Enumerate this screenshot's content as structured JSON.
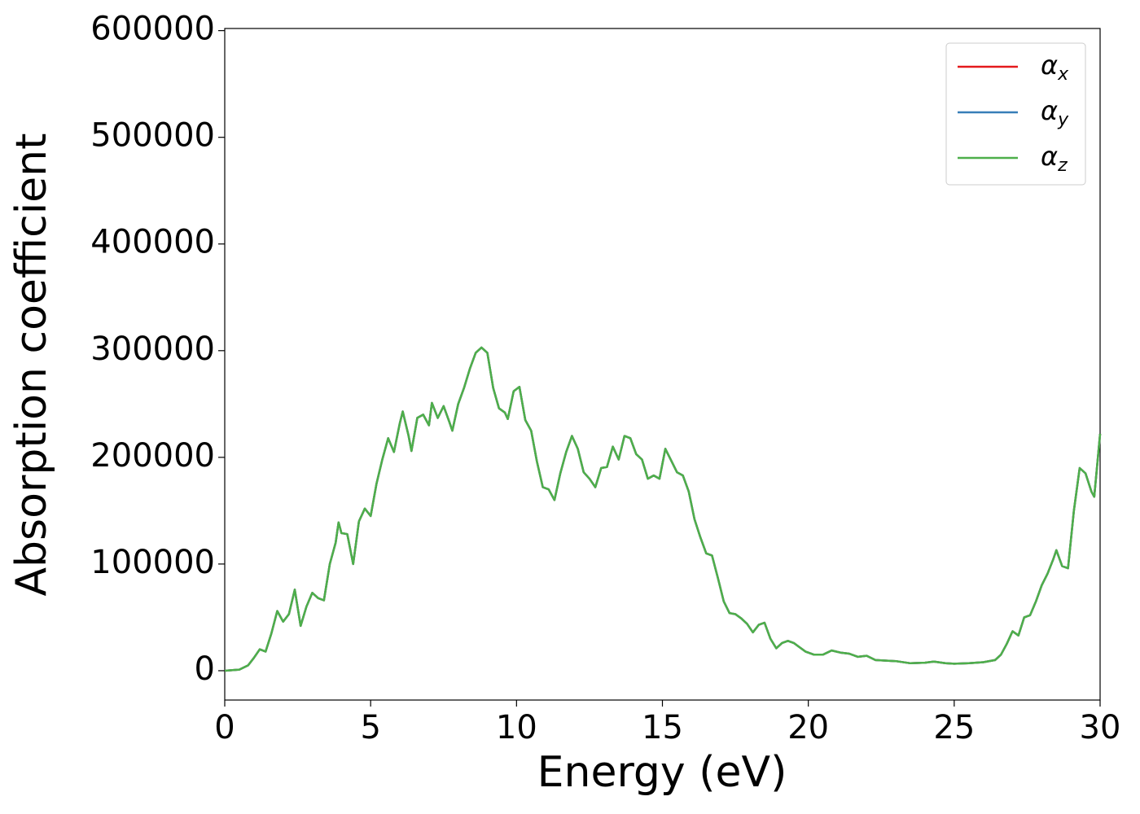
{
  "chart_data": {
    "type": "line",
    "xlabel": "Energy (eV)",
    "ylabel": "Absorption coefficient",
    "x": [
      0,
      0.5,
      0.8,
      1.0,
      1.2,
      1.4,
      1.6,
      1.8,
      2.0,
      2.2,
      2.4,
      2.6,
      2.8,
      3.0,
      3.2,
      3.4,
      3.6,
      3.8,
      3.9,
      4.0,
      4.2,
      4.4,
      4.6,
      4.8,
      5.0,
      5.2,
      5.4,
      5.6,
      5.8,
      6.0,
      6.1,
      6.3,
      6.4,
      6.6,
      6.8,
      7.0,
      7.1,
      7.3,
      7.5,
      7.7,
      7.8,
      8.0,
      8.2,
      8.4,
      8.6,
      8.8,
      9.0,
      9.2,
      9.4,
      9.6,
      9.7,
      9.9,
      10.1,
      10.3,
      10.5,
      10.7,
      10.9,
      11.1,
      11.3,
      11.5,
      11.7,
      11.9,
      12.1,
      12.3,
      12.5,
      12.7,
      12.9,
      13.1,
      13.3,
      13.5,
      13.7,
      13.9,
      14.1,
      14.3,
      14.5,
      14.7,
      14.9,
      15.1,
      15.3,
      15.5,
      15.7,
      15.9,
      16.1,
      16.3,
      16.5,
      16.7,
      16.9,
      17.1,
      17.3,
      17.5,
      17.7,
      17.9,
      18.1,
      18.3,
      18.5,
      18.7,
      18.9,
      19.1,
      19.3,
      19.5,
      19.7,
      19.9,
      20.2,
      20.5,
      20.8,
      21.1,
      21.4,
      21.7,
      22.0,
      22.3,
      23.0,
      23.5,
      24.0,
      24.3,
      24.7,
      25.0,
      25.5,
      26.0,
      26.4,
      26.6,
      26.8,
      27.0,
      27.2,
      27.4,
      27.6,
      27.8,
      28.0,
      28.2,
      28.4,
      28.5,
      28.7,
      28.9,
      29.1,
      29.3,
      29.5,
      29.7,
      29.8,
      30.0
    ],
    "series": [
      {
        "name": "α_x",
        "color": "#e41a1c",
        "values": [
          0,
          1000,
          5000,
          12000,
          20000,
          18000,
          35000,
          56000,
          46000,
          53000,
          76000,
          42000,
          60000,
          73000,
          68000,
          66000,
          100000,
          120000,
          139000,
          129000,
          128000,
          100000,
          140000,
          152000,
          145000,
          175000,
          198000,
          218000,
          205000,
          232000,
          243000,
          220000,
          206000,
          237000,
          240000,
          230000,
          251000,
          237000,
          248000,
          233000,
          225000,
          250000,
          265000,
          283000,
          298000,
          303000,
          298000,
          265000,
          246000,
          242000,
          236000,
          262000,
          266000,
          235000,
          225000,
          196000,
          172000,
          170000,
          160000,
          185000,
          205000,
          220000,
          208000,
          186000,
          180000,
          172000,
          190000,
          191000,
          210000,
          198000,
          220000,
          218000,
          203000,
          198000,
          180000,
          183000,
          180000,
          208000,
          197000,
          186000,
          183000,
          168000,
          142000,
          125000,
          110000,
          108000,
          87000,
          65000,
          54000,
          53000,
          49000,
          44000,
          36000,
          43000,
          45000,
          30000,
          21000,
          26000,
          28000,
          26000,
          22000,
          18000,
          15000,
          15000,
          19000,
          17000,
          16000,
          13000,
          14000,
          10000,
          9000,
          7000,
          7500,
          8500,
          7000,
          6500,
          7000,
          8000,
          10000,
          15000,
          25000,
          37000,
          33000,
          50000,
          52000,
          65000,
          80000,
          91000,
          105000,
          113000,
          98000,
          96000,
          150000,
          190000,
          185000,
          168000,
          163000,
          222000
        ]
      },
      {
        "name": "α_y",
        "color": "#377eb8",
        "values": [
          0,
          1000,
          5000,
          12000,
          20000,
          18000,
          35000,
          56000,
          46000,
          53000,
          76000,
          42000,
          60000,
          73000,
          68000,
          66000,
          100000,
          120000,
          139000,
          129000,
          128000,
          100000,
          140000,
          152000,
          145000,
          175000,
          198000,
          218000,
          205000,
          232000,
          243000,
          220000,
          206000,
          237000,
          240000,
          230000,
          251000,
          237000,
          248000,
          233000,
          225000,
          250000,
          265000,
          283000,
          298000,
          303000,
          298000,
          265000,
          246000,
          242000,
          236000,
          262000,
          266000,
          235000,
          225000,
          196000,
          172000,
          170000,
          160000,
          185000,
          205000,
          220000,
          208000,
          186000,
          180000,
          172000,
          190000,
          191000,
          210000,
          198000,
          220000,
          218000,
          203000,
          198000,
          180000,
          183000,
          180000,
          208000,
          197000,
          186000,
          183000,
          168000,
          142000,
          125000,
          110000,
          108000,
          87000,
          65000,
          54000,
          53000,
          49000,
          44000,
          36000,
          43000,
          45000,
          30000,
          21000,
          26000,
          28000,
          26000,
          22000,
          18000,
          15000,
          15000,
          19000,
          17000,
          16000,
          13000,
          14000,
          10000,
          9000,
          7000,
          7500,
          8500,
          7000,
          6500,
          7000,
          8000,
          10000,
          15000,
          25000,
          37000,
          33000,
          50000,
          52000,
          65000,
          80000,
          91000,
          105000,
          113000,
          98000,
          96000,
          150000,
          190000,
          185000,
          168000,
          163000,
          222000
        ]
      },
      {
        "name": "α_z",
        "color": "#4daf4a",
        "values": [
          0,
          1000,
          5000,
          12000,
          20000,
          18000,
          35000,
          56000,
          46000,
          53000,
          76000,
          42000,
          60000,
          73000,
          68000,
          66000,
          100000,
          120000,
          139000,
          129000,
          128000,
          100000,
          140000,
          152000,
          145000,
          175000,
          198000,
          218000,
          205000,
          232000,
          243000,
          220000,
          206000,
          237000,
          240000,
          230000,
          251000,
          237000,
          248000,
          233000,
          225000,
          250000,
          265000,
          283000,
          298000,
          303000,
          298000,
          265000,
          246000,
          242000,
          236000,
          262000,
          266000,
          235000,
          225000,
          196000,
          172000,
          170000,
          160000,
          185000,
          205000,
          220000,
          208000,
          186000,
          180000,
          172000,
          190000,
          191000,
          210000,
          198000,
          220000,
          218000,
          203000,
          198000,
          180000,
          183000,
          180000,
          208000,
          197000,
          186000,
          183000,
          168000,
          142000,
          125000,
          110000,
          108000,
          87000,
          65000,
          54000,
          53000,
          49000,
          44000,
          36000,
          43000,
          45000,
          30000,
          21000,
          26000,
          28000,
          26000,
          22000,
          18000,
          15000,
          15000,
          19000,
          17000,
          16000,
          13000,
          14000,
          10000,
          9000,
          7000,
          7500,
          8500,
          7000,
          6500,
          7000,
          8000,
          10000,
          15000,
          25000,
          37000,
          33000,
          50000,
          52000,
          65000,
          80000,
          91000,
          105000,
          113000,
          98000,
          96000,
          150000,
          190000,
          185000,
          168000,
          163000,
          222000
        ]
      }
    ],
    "xlim": [
      0,
      30
    ],
    "xticks": [
      0,
      5,
      10,
      15,
      20,
      25,
      30
    ],
    "ylim": [
      -27500,
      602000
    ],
    "yticks": [
      0,
      100000,
      200000,
      300000,
      400000,
      500000,
      600000
    ],
    "grid": false,
    "legend": "upper right"
  }
}
